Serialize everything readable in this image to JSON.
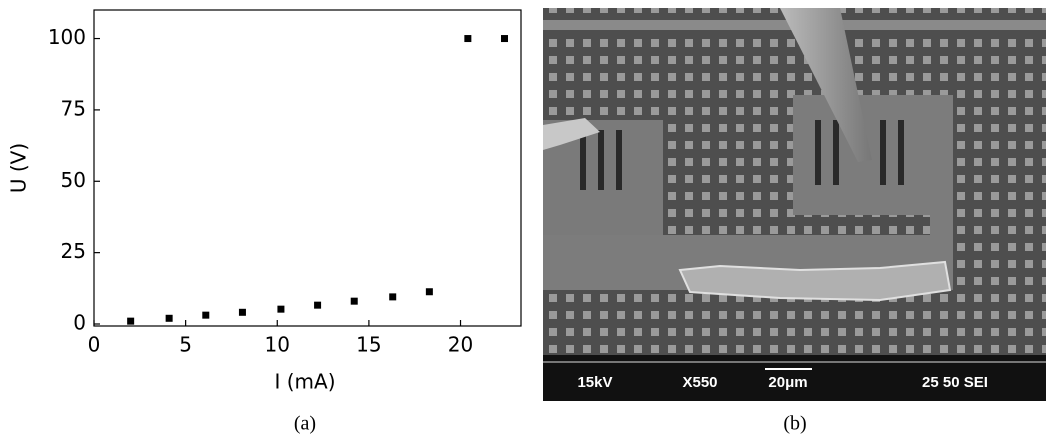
{
  "chart_data": {
    "type": "scatter",
    "xlabel": "I (mA)",
    "ylabel": "U (V)",
    "x": [
      2.0,
      4.1,
      6.1,
      8.1,
      10.2,
      12.2,
      14.2,
      16.3,
      18.3,
      20.4,
      22.4
    ],
    "values": [
      1.0,
      2.0,
      3.1,
      4.1,
      5.2,
      6.6,
      8.0,
      9.5,
      11.3,
      100,
      100
    ],
    "color": "#000000",
    "xlim": [
      0,
      23.3
    ],
    "ylim": [
      -0.7,
      110
    ],
    "xticks": [
      0,
      5,
      10,
      15,
      20
    ],
    "yticks": [
      0,
      25,
      50,
      75,
      100
    ]
  },
  "captions": [
    "(a)",
    "(b)"
  ],
  "image_b": {
    "labels": [
      "15kV",
      "X550",
      "20μm",
      "25 50 SEI"
    ]
  }
}
